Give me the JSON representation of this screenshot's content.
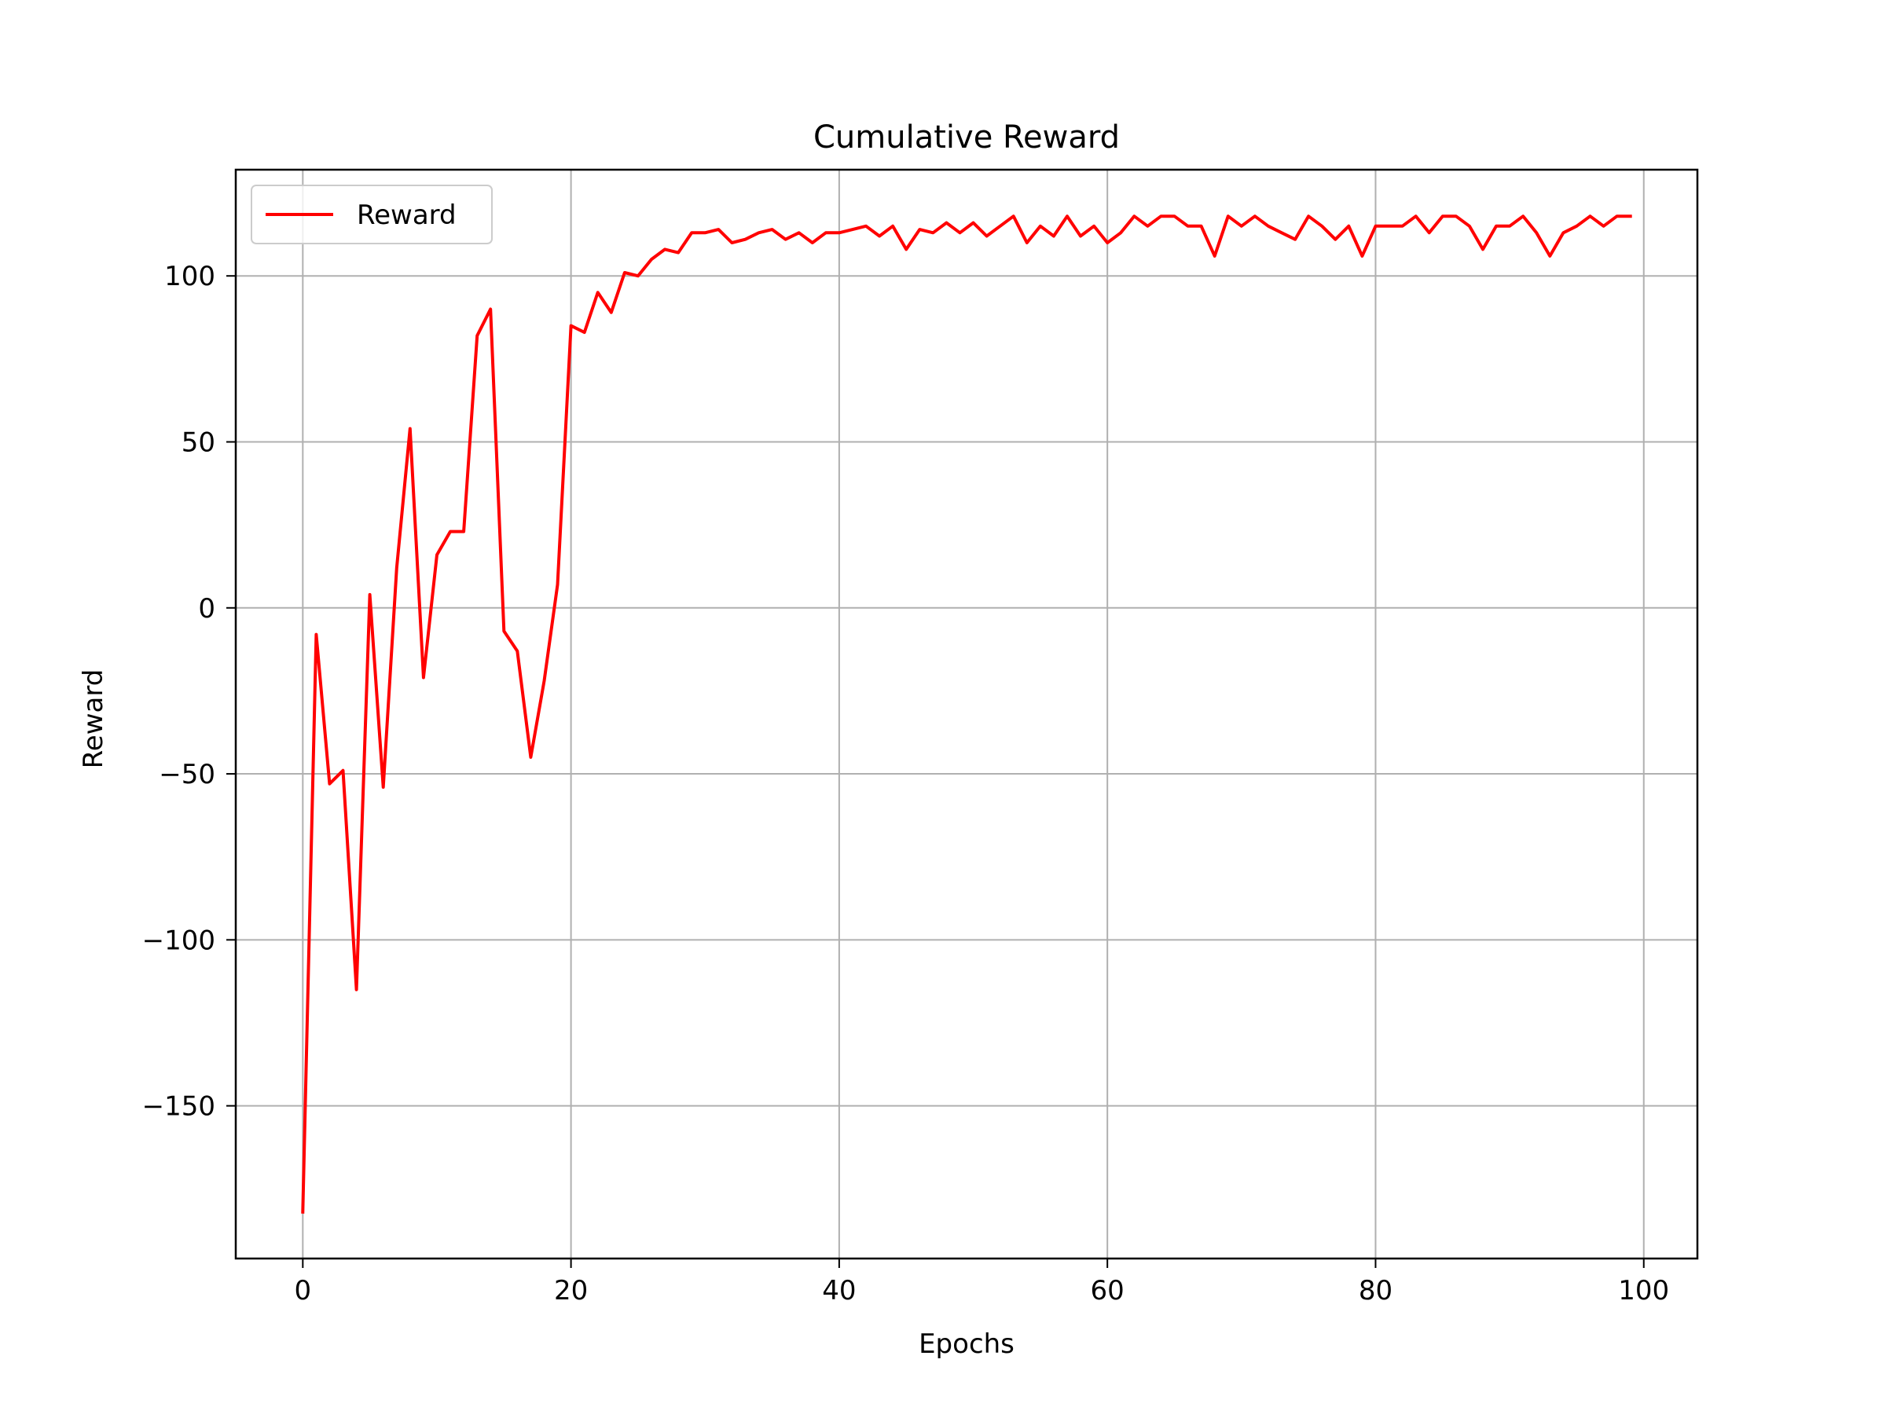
{
  "chart_data": {
    "type": "line",
    "title": "Cumulative Reward",
    "xlabel": "Epochs",
    "ylabel": "Reward",
    "xlim": [
      -5,
      104
    ],
    "ylim": [
      -196,
      132
    ],
    "xticks": [
      0,
      20,
      40,
      60,
      80,
      100
    ],
    "yticks": [
      -150,
      -100,
      -50,
      0,
      50,
      100
    ],
    "xtick_labels": [
      "0",
      "20",
      "40",
      "60",
      "80",
      "100"
    ],
    "ytick_labels": [
      "−150",
      "−100",
      "−50",
      "0",
      "50",
      "100"
    ],
    "grid": true,
    "legend": {
      "position": "upper-left",
      "entries": [
        "Reward"
      ]
    },
    "series": [
      {
        "name": "Reward",
        "color": "#ff0000",
        "x": [
          0,
          1,
          2,
          3,
          4,
          5,
          6,
          7,
          8,
          9,
          10,
          11,
          12,
          13,
          14,
          15,
          16,
          17,
          18,
          19,
          20,
          21,
          22,
          23,
          24,
          25,
          26,
          27,
          28,
          29,
          30,
          31,
          32,
          33,
          34,
          35,
          36,
          37,
          38,
          39,
          40,
          41,
          42,
          43,
          44,
          45,
          46,
          47,
          48,
          49,
          50,
          51,
          52,
          53,
          54,
          55,
          56,
          57,
          58,
          59,
          60,
          61,
          62,
          63,
          64,
          65,
          66,
          67,
          68,
          69,
          70,
          71,
          72,
          73,
          74,
          75,
          76,
          77,
          78,
          79,
          80,
          81,
          82,
          83,
          84,
          85,
          86,
          87,
          88,
          89,
          90,
          91,
          92,
          93,
          94,
          95,
          96,
          97,
          98,
          99
        ],
        "values": [
          -182,
          -8,
          -53,
          -49,
          -115,
          4,
          -54,
          12,
          54,
          -21,
          16,
          23,
          23,
          82,
          90,
          -7,
          -13,
          -45,
          -22,
          7,
          85,
          83,
          95,
          89,
          101,
          100,
          105,
          108,
          107,
          113,
          113,
          114,
          110,
          111,
          113,
          114,
          111,
          113,
          110,
          113,
          113,
          114,
          115,
          112,
          115,
          108,
          114,
          113,
          116,
          113,
          116,
          112,
          115,
          118,
          110,
          115,
          112,
          118,
          112,
          115,
          110,
          113,
          118,
          115,
          118,
          118,
          115,
          115,
          106,
          118,
          115,
          118,
          115,
          113,
          111,
          118,
          115,
          111,
          115,
          106,
          115,
          115,
          115,
          118,
          113,
          118,
          118,
          115,
          108,
          115,
          115,
          118,
          113,
          106,
          113,
          115,
          118,
          115,
          118,
          118
        ]
      }
    ]
  }
}
